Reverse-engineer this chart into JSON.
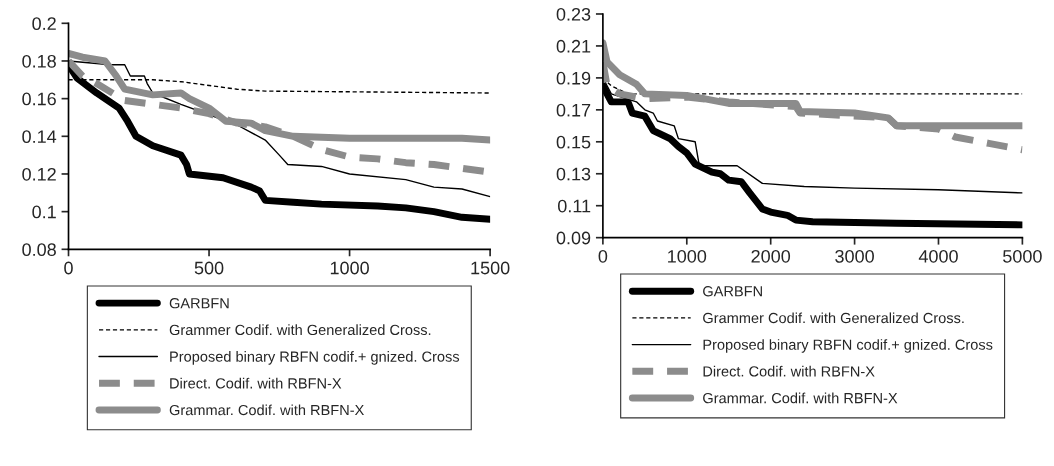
{
  "chart_data": [
    {
      "type": "line",
      "xlim": [
        0,
        1500
      ],
      "xticks": [
        0,
        500,
        1000,
        1500
      ],
      "ylim": [
        0.08,
        0.2
      ],
      "yticks": [
        0.08,
        0.1,
        0.12,
        0.14,
        0.16,
        0.18,
        0.2
      ],
      "grid": false,
      "legend": "bottom",
      "marker": "none",
      "series": [
        {
          "name": "GARBFN",
          "color": "#000000",
          "line_style": "solid",
          "x": [
            0,
            30,
            100,
            180,
            210,
            240,
            300,
            400,
            420,
            430,
            550,
            650,
            680,
            700,
            800,
            900,
            1100,
            1200,
            1300,
            1400,
            1500
          ],
          "values": [
            0.178,
            0.171,
            0.163,
            0.155,
            0.148,
            0.14,
            0.135,
            0.13,
            0.125,
            0.12,
            0.118,
            0.113,
            0.111,
            0.106,
            0.105,
            0.104,
            0.103,
            0.102,
            0.1,
            0.097,
            0.096
          ]
        },
        {
          "name": "Grammer Codif. with Generalized Cross.",
          "color": "#000000",
          "line_style": "dashed",
          "x": [
            0,
            300,
            400,
            600,
            700,
            1500
          ],
          "values": [
            0.17,
            0.17,
            0.169,
            0.165,
            0.164,
            0.163
          ]
        },
        {
          "name": "Proposed binary RBFN codif.+ gnized. Cross",
          "color": "#000000",
          "line_style": "solid",
          "x": [
            0,
            150,
            200,
            220,
            270,
            280,
            300,
            400,
            500,
            600,
            700,
            750,
            780,
            900,
            1000,
            1200,
            1300,
            1400,
            1500
          ],
          "values": [
            0.18,
            0.178,
            0.178,
            0.172,
            0.172,
            0.168,
            0.163,
            0.157,
            null,
            0.146,
            0.138,
            0.13,
            0.125,
            0.124,
            0.12,
            0.117,
            0.113,
            0.112,
            0.108
          ]
        },
        {
          "name": "Direct. Codif. with RBFN-X",
          "color": "#8c8c8c",
          "line_style": "dashed",
          "x": [
            0,
            50,
            100,
            200,
            300,
            400,
            500,
            600,
            700,
            800,
            900,
            1000,
            1100,
            1200,
            1300,
            1400,
            1500
          ],
          "values": [
            0.18,
            0.172,
            0.168,
            0.159,
            0.157,
            0.155,
            0.152,
            0.147,
            0.145,
            0.14,
            0.133,
            0.129,
            0.128,
            0.126,
            0.125,
            0.123,
            0.121
          ]
        },
        {
          "name": "Grammar. Codif. with RBFN-X",
          "color": "#8c8c8c",
          "line_style": "solid",
          "x": [
            0,
            50,
            130,
            170,
            200,
            300,
            400,
            430,
            500,
            560,
            650,
            700,
            800,
            1000,
            1400,
            1500
          ],
          "values": [
            0.184,
            0.182,
            0.18,
            0.172,
            0.165,
            0.162,
            0.163,
            0.16,
            0.155,
            0.148,
            0.147,
            0.143,
            0.14,
            0.139,
            0.139,
            0.138
          ]
        }
      ]
    },
    {
      "type": "line",
      "xlim": [
        0,
        5000
      ],
      "xticks": [
        0,
        1000,
        2000,
        3000,
        4000,
        5000
      ],
      "ylim": [
        0.09,
        0.23
      ],
      "yticks": [
        0.09,
        0.11,
        0.13,
        0.15,
        0.17,
        0.19,
        0.21,
        0.23
      ],
      "grid": false,
      "legend": "bottom",
      "marker": "none",
      "series": [
        {
          "name": "GARBFN",
          "color": "#000000",
          "line_style": "solid",
          "x": [
            0,
            100,
            300,
            350,
            500,
            600,
            800,
            900,
            1000,
            1100,
            1300,
            1400,
            1500,
            1650,
            1750,
            1900,
            2000,
            2200,
            2300,
            2500,
            3500,
            5000
          ],
          "values": [
            0.185,
            0.175,
            0.175,
            0.168,
            0.166,
            0.157,
            0.152,
            0.147,
            0.143,
            0.136,
            0.131,
            0.13,
            0.126,
            0.125,
            0.118,
            0.108,
            0.106,
            0.104,
            0.101,
            0.1,
            0.099,
            0.098
          ]
        },
        {
          "name": "Grammer Codif. with Generalized Cross.",
          "color": "#000000",
          "line_style": "dashed",
          "x": [
            0,
            100,
            300,
            5000
          ],
          "values": [
            0.19,
            0.185,
            0.18,
            0.18
          ]
        },
        {
          "name": "Proposed binary RBFN codif.+ gnized. Cross",
          "color": "#000000",
          "line_style": "solid",
          "x": [
            0,
            100,
            400,
            500,
            600,
            650,
            850,
            900,
            1100,
            1150,
            1600,
            1900,
            2400,
            3000,
            4000,
            5000
          ],
          "values": [
            0.19,
            0.18,
            0.175,
            0.17,
            0.168,
            0.163,
            0.16,
            0.152,
            0.15,
            0.135,
            0.135,
            0.124,
            0.122,
            0.121,
            0.12,
            0.118
          ]
        },
        {
          "name": "Direct. Codif. with RBFN-X",
          "color": "#8c8c8c",
          "line_style": "dashed",
          "x": [
            0,
            50,
            200,
            500,
            1000,
            1500,
            2300,
            2350,
            3400,
            3500,
            4000,
            4200,
            4600,
            5000
          ],
          "values": [
            0.2,
            0.185,
            0.18,
            0.177,
            0.178,
            0.175,
            0.172,
            0.168,
            0.165,
            0.16,
            0.158,
            0.153,
            0.149,
            0.145
          ]
        },
        {
          "name": "Grammar. Codif. with RBFN-X",
          "color": "#8c8c8c",
          "line_style": "solid",
          "x": [
            0,
            50,
            200,
            400,
            500,
            1000,
            1500,
            2300,
            2350,
            3000,
            3400,
            3500,
            4000,
            5000
          ],
          "values": [
            0.212,
            0.2,
            0.192,
            0.186,
            0.18,
            0.179,
            0.174,
            0.174,
            0.169,
            0.168,
            0.165,
            0.16,
            0.16,
            0.16
          ]
        }
      ]
    }
  ]
}
